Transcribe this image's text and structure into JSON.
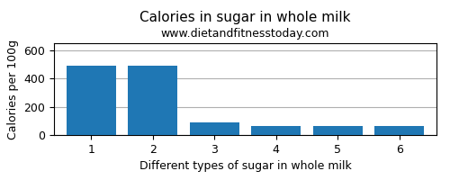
{
  "chart_data": {
    "type": "bar",
    "title": "Calories in sugar in whole milk",
    "subtitle": "www.dietandfitnesstoday.com",
    "xlabel": "Different types of sugar in whole milk",
    "ylabel": "Calories per 100g",
    "categories": [
      1,
      2,
      3,
      4,
      5,
      6
    ],
    "values": [
      493,
      493,
      90,
      65,
      65,
      65
    ],
    "ylim": [
      0,
      650
    ],
    "yticks": [
      0,
      200,
      400,
      600
    ],
    "grid": true
  }
}
